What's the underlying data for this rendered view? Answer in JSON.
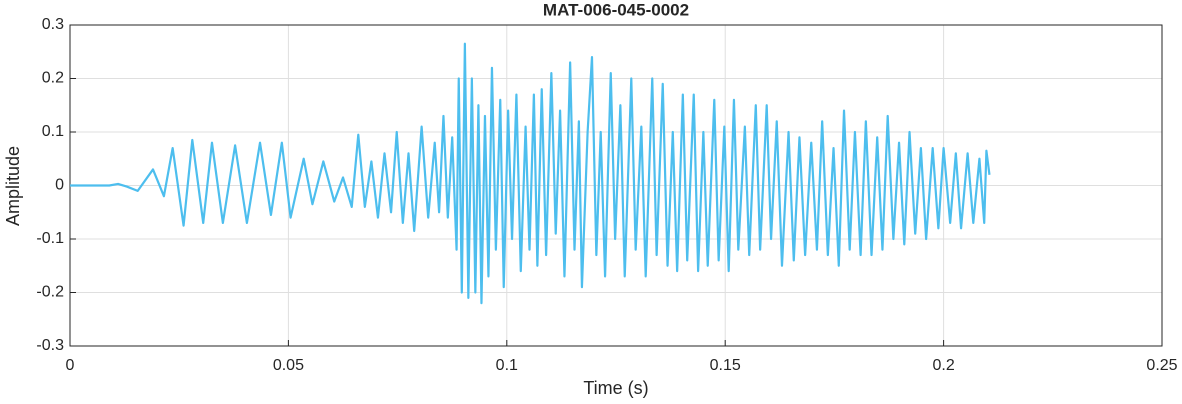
{
  "chart_data": {
    "type": "line",
    "title": "MAT-006-045-0002",
    "x_label": "Time (s)",
    "y_label": "Amplitude",
    "xlim": [
      0,
      0.25
    ],
    "xticks": [
      0,
      0.05,
      0.1,
      0.15,
      0.2,
      0.25
    ],
    "ylim": [
      -0.3,
      0.3
    ],
    "yticks": [
      -0.3,
      -0.2,
      -0.1,
      0,
      0.1,
      0.2,
      0.3
    ],
    "grid": true,
    "series": [
      {
        "color": "#4dbeee",
        "x": [
          0,
          0.009,
          0.011,
          0.013,
          0.0155,
          0.019,
          0.0215,
          0.0235,
          0.026,
          0.028,
          0.0305,
          0.0325,
          0.035,
          0.0378,
          0.0405,
          0.0435,
          0.046,
          0.0485,
          0.0505,
          0.0535,
          0.0555,
          0.058,
          0.0605,
          0.0625,
          0.0645,
          0.066,
          0.0675,
          0.069,
          0.0705,
          0.072,
          0.0735,
          0.0748,
          0.0762,
          0.0775,
          0.0788,
          0.0805,
          0.082,
          0.0835,
          0.0845,
          0.0855,
          0.0865,
          0.0875,
          0.0885,
          0.089,
          0.0897,
          0.0904,
          0.0912,
          0.092,
          0.0928,
          0.0935,
          0.0942,
          0.095,
          0.0958,
          0.0966,
          0.0975,
          0.0985,
          0.0993,
          0.1003,
          0.1012,
          0.1022,
          0.1032,
          0.1043,
          0.1052,
          0.1062,
          0.107,
          0.108,
          0.109,
          0.1102,
          0.1112,
          0.1122,
          0.1132,
          0.1145,
          0.1155,
          0.1165,
          0.1172,
          0.1185,
          0.1195,
          0.1205,
          0.1215,
          0.1225,
          0.1238,
          0.1248,
          0.126,
          0.127,
          0.1285,
          0.1295,
          0.1308,
          0.1318,
          0.1333,
          0.1343,
          0.1357,
          0.1368,
          0.138,
          0.139,
          0.1403,
          0.1413,
          0.1428,
          0.1438,
          0.145,
          0.146,
          0.1475,
          0.1485,
          0.1498,
          0.1508,
          0.152,
          0.153,
          0.1545,
          0.1555,
          0.157,
          0.158,
          0.1595,
          0.1605,
          0.1618,
          0.163,
          0.1645,
          0.1657,
          0.167,
          0.1683,
          0.1697,
          0.171,
          0.1722,
          0.1735,
          0.1748,
          0.176,
          0.1772,
          0.1785,
          0.1797,
          0.181,
          0.1822,
          0.1835,
          0.1848,
          0.186,
          0.1872,
          0.1885,
          0.1898,
          0.191,
          0.1922,
          0.1935,
          0.1948,
          0.196,
          0.1975,
          0.1988,
          0.2,
          0.2015,
          0.2028,
          0.204,
          0.2055,
          0.2068,
          0.2082,
          0.2093,
          0.2098,
          0.2105
        ],
        "values": [
          0,
          0,
          0.003,
          -0.002,
          -0.01,
          0.03,
          -0.02,
          0.07,
          -0.075,
          0.085,
          -0.07,
          0.08,
          -0.07,
          0.075,
          -0.07,
          0.08,
          -0.055,
          0.08,
          -0.06,
          0.05,
          -0.035,
          0.045,
          -0.03,
          0.015,
          -0.04,
          0.095,
          -0.04,
          0.045,
          -0.06,
          0.06,
          -0.05,
          0.1,
          -0.07,
          0.06,
          -0.085,
          0.11,
          -0.06,
          0.08,
          -0.05,
          0.13,
          -0.06,
          0.09,
          -0.12,
          0.2,
          -0.2,
          0.265,
          -0.21,
          0.2,
          -0.2,
          0.15,
          -0.22,
          0.13,
          -0.17,
          0.22,
          -0.12,
          0.16,
          -0.19,
          0.14,
          -0.1,
          0.17,
          -0.16,
          0.11,
          -0.12,
          0.17,
          -0.15,
          0.18,
          -0.13,
          0.21,
          -0.09,
          0.14,
          -0.17,
          0.23,
          -0.12,
          0.12,
          -0.19,
          0.1,
          0.24,
          -0.13,
          0.1,
          -0.17,
          0.21,
          -0.1,
          0.15,
          -0.17,
          0.2,
          -0.12,
          0.11,
          -0.17,
          0.2,
          -0.13,
          0.19,
          -0.15,
          0.1,
          -0.16,
          0.17,
          -0.14,
          0.17,
          -0.16,
          0.1,
          -0.15,
          0.16,
          -0.14,
          0.11,
          -0.16,
          0.16,
          -0.12,
          0.11,
          -0.13,
          0.15,
          -0.12,
          0.15,
          -0.1,
          0.12,
          -0.15,
          0.1,
          -0.14,
          0.09,
          -0.13,
          0.08,
          -0.12,
          0.12,
          -0.13,
          0.07,
          -0.15,
          0.14,
          -0.12,
          0.1,
          -0.13,
          0.12,
          -0.13,
          0.09,
          -0.12,
          0.13,
          -0.1,
          0.08,
          -0.11,
          0.1,
          -0.09,
          0.07,
          -0.1,
          0.07,
          -0.08,
          0.07,
          -0.07,
          0.06,
          -0.08,
          0.06,
          -0.07,
          0.05,
          -0.07,
          0.065,
          0.02
        ]
      }
    ]
  }
}
